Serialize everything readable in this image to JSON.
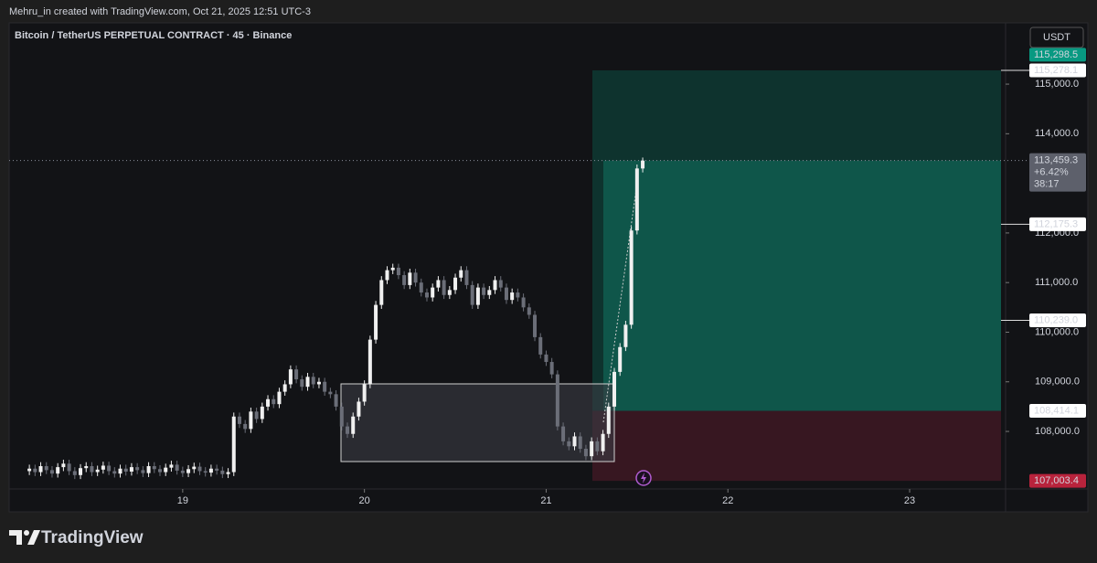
{
  "header": {
    "text": "Mehru_in created with TradingView.com, Oct 21, 2025 12:51 UTC-3"
  },
  "chart_data": {
    "type": "candlestick",
    "title": "Bitcoin / TetherUS PERPETUAL CONTRACT · 45 · Binance",
    "currency": "USDT",
    "x": [
      18.15625,
      18.1875,
      18.21875,
      18.25,
      18.28125,
      18.3125,
      18.34375,
      18.375,
      18.40625,
      18.4375,
      18.46875,
      18.5,
      18.53125,
      18.5625,
      18.59375,
      18.625,
      18.65625,
      18.6875,
      18.71875,
      18.75,
      18.78125,
      18.8125,
      18.84375,
      18.875,
      18.90625,
      18.9375,
      18.96875,
      19,
      19.03125,
      19.0625,
      19.09375,
      19.125,
      19.15625,
      19.1875,
      19.21875,
      19.25,
      19.28125,
      19.3125,
      19.34375,
      19.375,
      19.40625,
      19.4375,
      19.46875,
      19.5,
      19.53125,
      19.5625,
      19.59375,
      19.625,
      19.65625,
      19.6875,
      19.71875,
      19.75,
      19.78125,
      19.8125,
      19.84375,
      19.875,
      19.90625,
      19.9375,
      19.96875,
      20,
      20.03125,
      20.0625,
      20.09375,
      20.125,
      20.15625,
      20.1875,
      20.21875,
      20.25,
      20.28125,
      20.3125,
      20.34375,
      20.375,
      20.40625,
      20.4375,
      20.46875,
      20.5,
      20.53125,
      20.5625,
      20.59375,
      20.625,
      20.65625,
      20.6875,
      20.71875,
      20.75,
      20.78125,
      20.8125,
      20.84375,
      20.875,
      20.90625,
      20.9375,
      20.96875,
      21,
      21.03125,
      21.0625,
      21.09375,
      21.125,
      21.15625,
      21.1875,
      21.21875,
      21.25,
      21.28125,
      21.3125,
      21.34375,
      21.375,
      21.40625,
      21.4375,
      21.46875,
      21.5,
      21.53125
    ],
    "open": [
      107200,
      107250,
      107180,
      107300,
      107220,
      107150,
      107280,
      107350,
      107200,
      107120,
      107260,
      107300,
      107180,
      107230,
      107310,
      107200,
      107150,
      107250,
      107190,
      107280,
      107220,
      107160,
      107300,
      107240,
      107180,
      107270,
      107330,
      107210,
      107160,
      107240,
      107290,
      107200,
      107170,
      107250,
      107210,
      107140,
      107180,
      108300,
      108150,
      108050,
      108400,
      108250,
      108500,
      108650,
      108550,
      108800,
      108950,
      109250,
      109050,
      108900,
      109100,
      108950,
      109000,
      108800,
      108750,
      108500,
      108100,
      107950,
      108300,
      108600,
      108950,
      109850,
      110550,
      111050,
      111250,
      111300,
      111150,
      110950,
      111200,
      111000,
      110800,
      110700,
      110900,
      111050,
      110750,
      110850,
      111100,
      111250,
      110950,
      110550,
      110900,
      110750,
      110850,
      111050,
      110900,
      110650,
      110800,
      110700,
      110500,
      110350,
      109900,
      109550,
      109400,
      109150,
      108100,
      107800,
      107700,
      107900,
      107650,
      107500,
      107800,
      107600,
      107950,
      108500,
      109200,
      109700,
      110150,
      112050,
      113300
    ],
    "high": [
      107330,
      107330,
      107380,
      107380,
      107300,
      107360,
      107430,
      107430,
      107280,
      107340,
      107380,
      107380,
      107310,
      107390,
      107390,
      107280,
      107330,
      107330,
      107360,
      107360,
      107300,
      107380,
      107380,
      107320,
      107350,
      107410,
      107410,
      107290,
      107320,
      107370,
      107370,
      107280,
      107330,
      107330,
      107290,
      107260,
      108380,
      108380,
      108230,
      108480,
      108480,
      108580,
      108730,
      108730,
      108880,
      109030,
      109330,
      109330,
      109130,
      109180,
      109180,
      109080,
      109080,
      108880,
      108830,
      108580,
      108180,
      108380,
      108680,
      109030,
      109930,
      110630,
      111130,
      111330,
      111380,
      111380,
      111230,
      111280,
      111280,
      111080,
      110880,
      110980,
      111130,
      111130,
      110930,
      111180,
      111330,
      111330,
      111030,
      110980,
      110980,
      110930,
      111130,
      111130,
      110980,
      110880,
      110880,
      110780,
      110580,
      110430,
      109980,
      109630,
      109480,
      109230,
      108180,
      107880,
      107980,
      107980,
      107730,
      107880,
      107880,
      108030,
      108580,
      109280,
      109780,
      110230,
      112130,
      113380,
      113520
    ],
    "low": [
      107120,
      107100,
      107100,
      107140,
      107070,
      107070,
      107200,
      107120,
      107040,
      107040,
      107180,
      107100,
      107100,
      107150,
      107120,
      107070,
      107070,
      107110,
      107110,
      107140,
      107080,
      107080,
      107160,
      107100,
      107100,
      107190,
      107130,
      107080,
      107080,
      107160,
      107120,
      107090,
      107090,
      107130,
      107060,
      107060,
      107100,
      108070,
      107970,
      107970,
      108170,
      108170,
      108420,
      108470,
      108470,
      108720,
      108870,
      108970,
      108820,
      108820,
      108870,
      108870,
      108720,
      108670,
      108420,
      108020,
      107870,
      107870,
      108220,
      108520,
      108870,
      109770,
      110470,
      110970,
      111170,
      111070,
      110870,
      110870,
      110920,
      110720,
      110620,
      110620,
      110820,
      110670,
      110670,
      110770,
      111020,
      110870,
      110470,
      110470,
      110670,
      110670,
      110770,
      110820,
      110570,
      110570,
      110620,
      110420,
      110270,
      109820,
      109470,
      109320,
      109070,
      108020,
      107720,
      107620,
      107620,
      107570,
      107420,
      107420,
      107520,
      107520,
      107870,
      108420,
      109120,
      109620,
      110070,
      111970,
      113220
    ],
    "close": [
      107250,
      107180,
      107300,
      107220,
      107150,
      107280,
      107350,
      107200,
      107120,
      107260,
      107300,
      107180,
      107230,
      107310,
      107200,
      107150,
      107250,
      107190,
      107280,
      107220,
      107160,
      107300,
      107240,
      107180,
      107270,
      107330,
      107210,
      107160,
      107240,
      107290,
      107200,
      107170,
      107250,
      107210,
      107140,
      107180,
      108300,
      108150,
      108050,
      108400,
      108250,
      108500,
      108650,
      108550,
      108800,
      108950,
      109250,
      109050,
      108900,
      109100,
      108950,
      109000,
      108800,
      108750,
      108500,
      108100,
      107950,
      108300,
      108600,
      108950,
      109850,
      110550,
      111050,
      111250,
      111300,
      111150,
      110950,
      111200,
      111000,
      110800,
      110700,
      110900,
      111050,
      110750,
      110850,
      111100,
      111250,
      110950,
      110550,
      110900,
      110750,
      110850,
      111050,
      110900,
      110650,
      110800,
      110700,
      110500,
      110350,
      109900,
      109550,
      109400,
      109150,
      108100,
      107800,
      107700,
      107900,
      107650,
      107500,
      107800,
      107600,
      107950,
      108500,
      109200,
      109700,
      110150,
      112050,
      113300,
      113459.3
    ],
    "up_color": "#f0f0f0",
    "down_color": "#6b6e78",
    "xlim": [
      18.045,
      23.528
    ],
    "xticks": [
      19,
      20,
      21,
      22,
      23
    ],
    "ylim": [
      106840,
      116180
    ],
    "yticks": [
      {
        "value": 108000,
        "label": "108,000.0"
      },
      {
        "value": 109000,
        "label": "109,000.0"
      },
      {
        "value": 110000,
        "label": "110,000.0"
      },
      {
        "value": 111000,
        "label": "111,000.0"
      },
      {
        "value": 112000,
        "label": "112,000.0"
      },
      {
        "value": 114000,
        "label": "114,000.0"
      },
      {
        "value": 115000,
        "label": "115,000.0"
      }
    ],
    "grid": false,
    "last_price": {
      "value": 113459.3,
      "label": "113,459.3",
      "change": "+6.42%",
      "countdown": "38:17"
    },
    "position": {
      "target": {
        "value": 115278.1,
        "label": "115,278.1"
      },
      "entry": {
        "value": 108414.1,
        "label": "108,414.1"
      },
      "stop": {
        "value": 107003.4,
        "label": "107,003.4"
      }
    },
    "price_labels": [
      {
        "value": 115298.5,
        "label": "115,298.5"
      },
      {
        "value": 112175.3,
        "label": "112,175.3"
      },
      {
        "value": 110239.0,
        "label": "110,239.0"
      }
    ]
  },
  "footer": {
    "logo": "TradingView"
  }
}
